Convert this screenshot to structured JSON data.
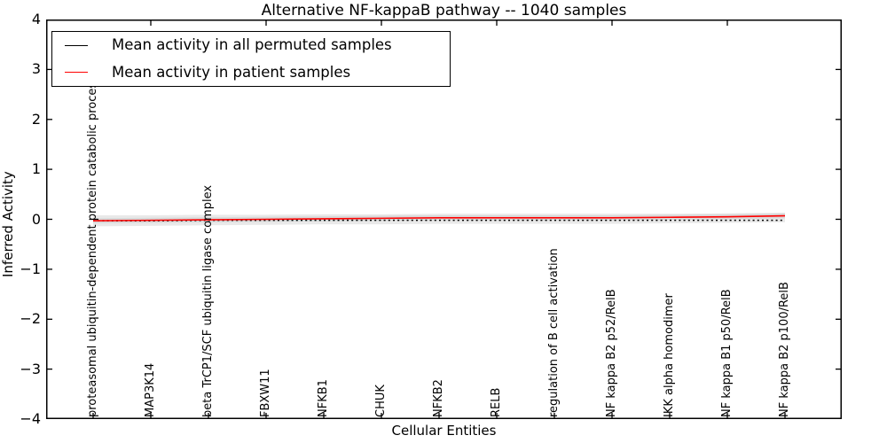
{
  "figure": {
    "background": "#ffffff",
    "spine_color": "#000000"
  },
  "chart_data": {
    "type": "line",
    "title": "Alternative NF-kappaB pathway -- 1040 samples",
    "xlabel": "Cellular Entities",
    "ylabel": "Inferred Activity",
    "ylim": [
      -4,
      4
    ],
    "yticks": [
      4,
      3,
      2,
      1,
      0,
      -1,
      -2,
      -3,
      -4
    ],
    "ytick_labels": [
      "4",
      "3",
      "2",
      "1",
      "0",
      "−1",
      "−2",
      "−3",
      "−4"
    ],
    "grid": false,
    "legend_position": "upper left",
    "categories": [
      "proteasomal ubiquitin-dependent protein catabolic process",
      "MAP3K14",
      "beta TrCP1/SCF ubiquitin ligase complex",
      "FBXW11",
      "NFKB1",
      "CHUK",
      "NFKB2",
      "RELB",
      "regulation of B cell activation",
      "NF kappa B2 p52/RelB",
      "IKK alpha homodimer",
      "NF kappa B1 p50/RelB",
      "NF kappa B2 p100/RelB"
    ],
    "series": [
      {
        "name": "Mean activity in all permuted samples",
        "color": "#000000",
        "linestyle": "dotted",
        "values": [
          -0.03,
          -0.03,
          -0.02,
          -0.02,
          -0.02,
          -0.02,
          -0.02,
          -0.02,
          -0.02,
          -0.02,
          -0.02,
          -0.02,
          -0.02
        ]
      },
      {
        "name": "Mean activity in patient samples",
        "color": "#ff0000",
        "linestyle": "solid",
        "values": [
          -0.03,
          -0.02,
          -0.01,
          0.0,
          0.01,
          0.02,
          0.03,
          0.03,
          0.03,
          0.03,
          0.04,
          0.05,
          0.07
        ]
      }
    ],
    "bands": [
      {
        "name": "permuted-samples-std-band",
        "color": "#e9e9e9",
        "upper": [
          0.08,
          0.08,
          0.09,
          0.09,
          0.1,
          0.1,
          0.11,
          0.11,
          0.11,
          0.11,
          0.11,
          0.12,
          0.13
        ],
        "lower": [
          -0.14,
          -0.13,
          -0.12,
          -0.11,
          -0.1,
          -0.1,
          -0.09,
          -0.09,
          -0.09,
          -0.09,
          -0.08,
          -0.07,
          -0.06
        ]
      },
      {
        "name": "patient-samples-std-band",
        "color": "#d8d8d8",
        "upper": [
          0.02,
          0.03,
          0.04,
          0.05,
          0.06,
          0.07,
          0.08,
          0.08,
          0.08,
          0.08,
          0.09,
          0.1,
          0.12
        ],
        "lower": [
          -0.08,
          -0.07,
          -0.06,
          -0.05,
          -0.04,
          -0.03,
          -0.02,
          -0.02,
          -0.02,
          -0.02,
          -0.01,
          0.0,
          0.02
        ]
      }
    ]
  }
}
